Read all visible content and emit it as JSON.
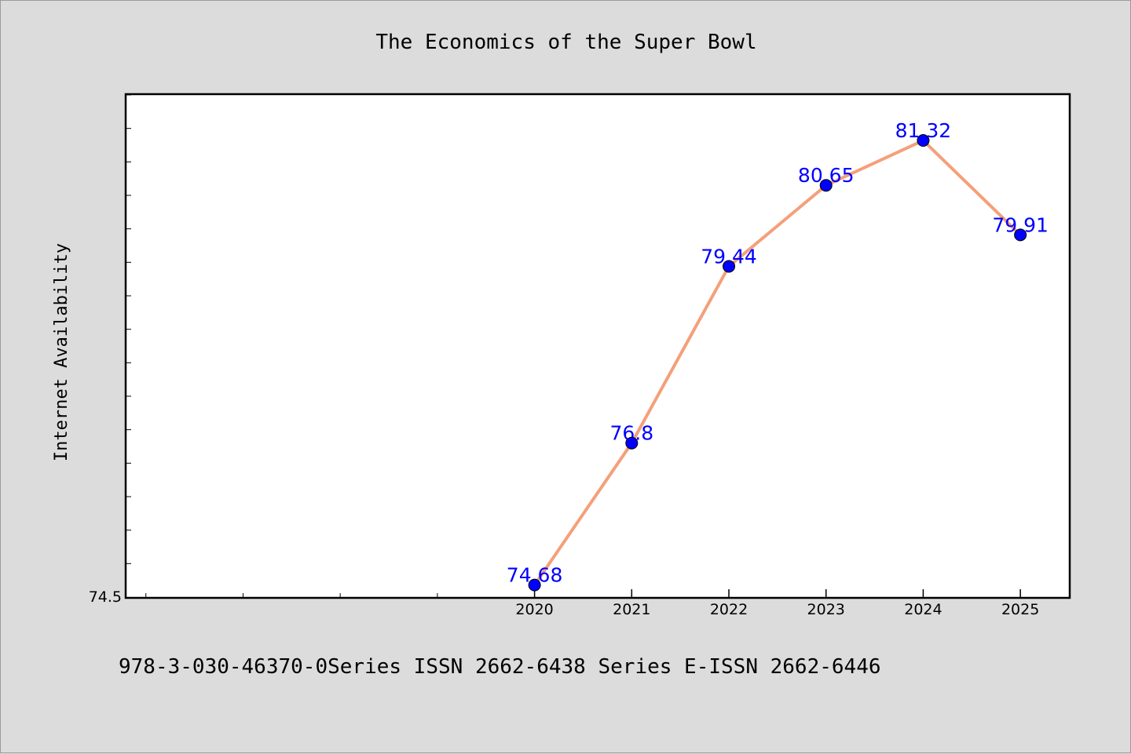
{
  "chart_data": {
    "type": "line",
    "title": "The Economics of the Super Bowl",
    "xlabel": "",
    "ylabel": "Internet Availability",
    "x": [
      "2020",
      "2021",
      "2022",
      "2023",
      "2024",
      "2025"
    ],
    "series": [
      {
        "values": [
          74.68,
          76.8,
          79.44,
          80.65,
          81.32,
          79.91
        ]
      }
    ],
    "data_labels": [
      "74.68",
      "76.8",
      "79.44",
      "80.65",
      "81.32",
      "79.91"
    ],
    "y_tick_labels": [
      "74.5"
    ],
    "ylim": [
      74.5,
      82.0
    ],
    "x_range": [
      2015.8,
      2025.5
    ],
    "grid": false,
    "line_color": "#f4a07a",
    "marker_color": "#0000ff",
    "label_color": "#0000ff"
  },
  "footer": {
    "text": "978-3-030-46370-0Series ISSN 2662-6438 Series E-ISSN 2662-6446"
  }
}
